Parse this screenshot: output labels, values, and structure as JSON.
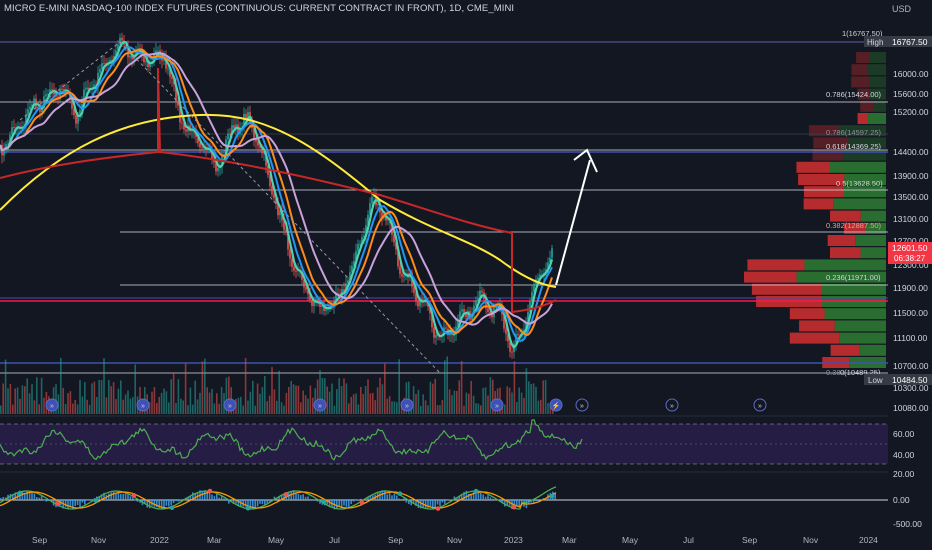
{
  "header": {
    "title": "MICRO E-MINI NASDAQ-100 INDEX FUTURES (CONTINUOUS: CURRENT CONTRACT IN FRONT), 1D, CME_MINI",
    "currency": "USD"
  },
  "price_axis": {
    "ticks": [
      "16000.00",
      "15600.00",
      "15200.00",
      "14400.00",
      "13900.00",
      "13500.00",
      "13100.00",
      "12700.00",
      "12300.00",
      "11900.00",
      "11500.00",
      "11100.00",
      "10700.00",
      "10300.00",
      "10080.00"
    ],
    "high_badge": {
      "label": "High",
      "value": "16767.50"
    },
    "low_badge": {
      "label": "Low",
      "value": "10484.50"
    },
    "last_price": {
      "value": "12601.50",
      "countdown": "06:38:27",
      "color": "#f23645"
    }
  },
  "fib_levels": [
    {
      "label": "1(16767.50)"
    },
    {
      "label": "0.786(15424.00)"
    },
    {
      "label": "0.786(14597.25)"
    },
    {
      "label": "0.618(14369.25)"
    },
    {
      "label": "0.5(13628.50)"
    },
    {
      "label": "0.382(12887.50)"
    },
    {
      "label": "0.236(11971.00)"
    },
    {
      "label": "0(10489.25)"
    },
    {
      "label": "0.382"
    }
  ],
  "rsi_axis": {
    "ticks": [
      "60.00",
      "40.00",
      "20.00"
    ]
  },
  "macd_axis": {
    "ticks": [
      "0.00",
      "-500.00"
    ]
  },
  "time_axis": {
    "labels": [
      "Sep",
      "Nov",
      "2022",
      "Mar",
      "May",
      "Jul",
      "Sep",
      "Nov",
      "2023",
      "Mar",
      "May",
      "Jul",
      "Sep",
      "Nov",
      "2024"
    ]
  },
  "colors": {
    "background": "#131722",
    "up": "#26a69a",
    "down": "#ef5350",
    "fib_white": "#d1d4dc",
    "ema_teal": "#4fd1b0",
    "ema_blue": "#2196f3",
    "ema_orange": "#ff8c1a",
    "ema_lavender": "#c8a2d8",
    "ema_yellow": "#ffeb3b",
    "ema_red": "#c62828",
    "level_blue": "#3f51b5",
    "level_red": "#ff1744",
    "rsi": "#4caf50",
    "macd_hist": "#42a5f5"
  },
  "icons": [
    "dividend-icon",
    "earnings-icon",
    "lightning-icon",
    "arrow-up-icon"
  ]
}
